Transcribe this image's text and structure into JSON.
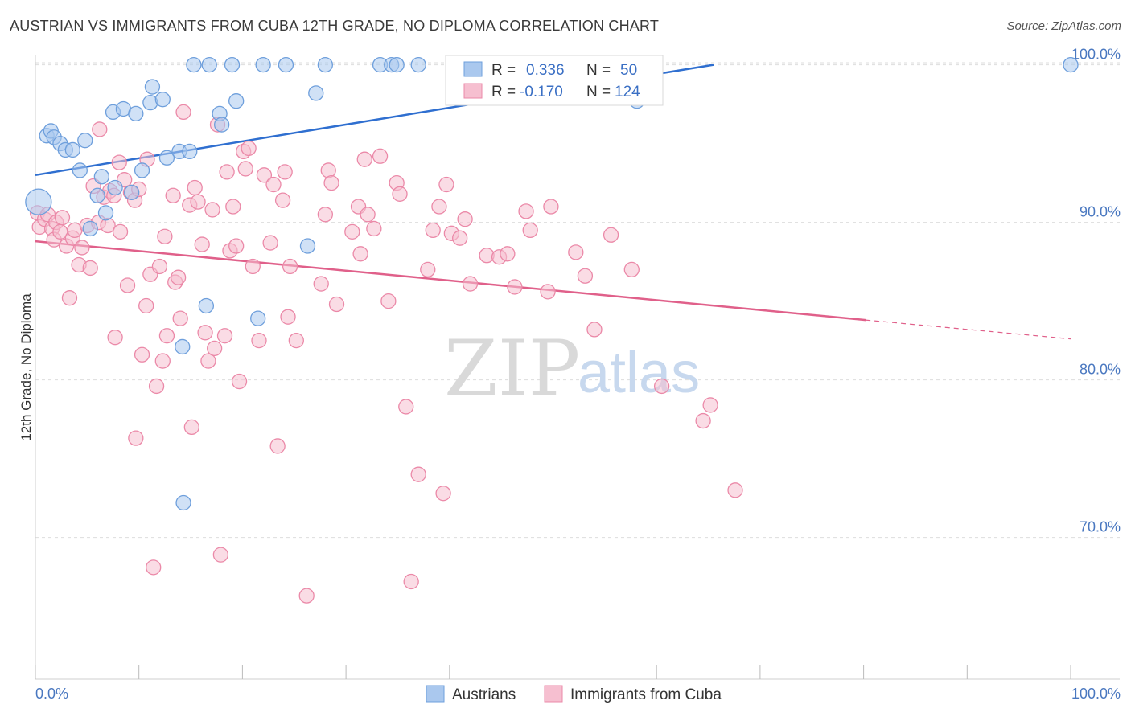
{
  "title": "AUSTRIAN VS IMMIGRANTS FROM CUBA 12TH GRADE, NO DIPLOMA CORRELATION CHART",
  "source": "Source: ZipAtlas.com",
  "watermark": {
    "zip": "ZIP",
    "atlas": "atlas"
  },
  "colors": {
    "blue_fill": "#aac8ee",
    "blue_stroke": "#6e9fdc",
    "blue_line": "#2f6fd0",
    "pink_fill": "#f6bfd0",
    "pink_stroke": "#eb89a8",
    "pink_line": "#e0608a",
    "axis_text": "#4a78c0",
    "grid": "#dddddd"
  },
  "legend_box": {
    "rows": [
      {
        "r_label": "R =",
        "r_value": "0.336",
        "n_label": "N =",
        "n_value": "50"
      },
      {
        "r_label": "R =",
        "r_value": "-0.170",
        "n_label": "N =",
        "n_value": "124"
      }
    ]
  },
  "bottom_legend": [
    "Austrians",
    "Immigrants from Cuba"
  ],
  "chart_data": {
    "type": "scatter",
    "title": "AUSTRIAN VS IMMIGRANTS FROM CUBA 12TH GRADE, NO DIPLOMA CORRELATION CHART",
    "xlabel": "",
    "ylabel": "12th Grade, No Diploma",
    "xlim": [
      0,
      100
    ],
    "ylim": [
      61,
      101
    ],
    "x_tick_labels": [
      "0.0%",
      "100.0%"
    ],
    "y_ticks": [
      70,
      80,
      90,
      100
    ],
    "y_tick_labels": [
      "70.0%",
      "80.0%",
      "90.0%",
      "100.0%"
    ],
    "grid": true,
    "legend_position": "top-center",
    "series": [
      {
        "name": "Austrians",
        "color": "#aac8ee",
        "trend": {
          "x": [
            0,
            65.5
          ],
          "y": [
            93.0,
            100.0
          ]
        },
        "points": [
          [
            0.3,
            91.3
          ],
          [
            1.1,
            95.5
          ],
          [
            1.5,
            95.8
          ],
          [
            1.8,
            95.4
          ],
          [
            2.4,
            95.0
          ],
          [
            2.9,
            94.6
          ],
          [
            3.6,
            94.6
          ],
          [
            4.3,
            93.3
          ],
          [
            4.8,
            95.2
          ],
          [
            5.3,
            89.6
          ],
          [
            6.0,
            91.7
          ],
          [
            6.4,
            92.9
          ],
          [
            6.8,
            90.6
          ],
          [
            7.5,
            97.0
          ],
          [
            7.7,
            92.2
          ],
          [
            8.5,
            97.2
          ],
          [
            9.3,
            91.9
          ],
          [
            9.7,
            96.9
          ],
          [
            10.3,
            93.3
          ],
          [
            11.1,
            97.6
          ],
          [
            11.3,
            98.6
          ],
          [
            12.3,
            97.8
          ],
          [
            12.7,
            94.1
          ],
          [
            13.9,
            94.5
          ],
          [
            14.2,
            82.1
          ],
          [
            14.3,
            72.2
          ],
          [
            14.9,
            94.5
          ],
          [
            15.3,
            100.0
          ],
          [
            16.5,
            84.7
          ],
          [
            16.8,
            100.0
          ],
          [
            17.8,
            96.9
          ],
          [
            18.0,
            96.2
          ],
          [
            19.0,
            100.0
          ],
          [
            19.4,
            97.7
          ],
          [
            21.5,
            83.9
          ],
          [
            22.0,
            100.0
          ],
          [
            24.2,
            100.0
          ],
          [
            26.3,
            88.5
          ],
          [
            27.1,
            98.2
          ],
          [
            28.0,
            100.0
          ],
          [
            33.3,
            100.0
          ],
          [
            34.4,
            100.0
          ],
          [
            34.9,
            100.0
          ],
          [
            37.0,
            100.0
          ],
          [
            41.3,
            100.0
          ],
          [
            51.3,
            100.0
          ],
          [
            53.2,
            100.0
          ],
          [
            57.0,
            100.0
          ],
          [
            58.1,
            97.7
          ],
          [
            100.0,
            100.0
          ]
        ]
      },
      {
        "name": "Immigrants from Cuba",
        "color": "#f6bfd0",
        "trend": {
          "x": [
            0,
            80.2
          ],
          "y": [
            88.8,
            83.8
          ]
        },
        "trend_dashed": {
          "x": [
            80.2,
            100
          ],
          "y": [
            83.8,
            82.6
          ]
        },
        "points": [
          [
            0.2,
            90.6
          ],
          [
            0.4,
            89.7
          ],
          [
            0.9,
            90.2
          ],
          [
            1.2,
            90.5
          ],
          [
            1.6,
            89.6
          ],
          [
            1.8,
            88.9
          ],
          [
            2.0,
            90.0
          ],
          [
            2.4,
            89.4
          ],
          [
            2.6,
            90.3
          ],
          [
            3.0,
            88.5
          ],
          [
            3.3,
            85.2
          ],
          [
            3.6,
            89.0
          ],
          [
            3.8,
            89.5
          ],
          [
            4.2,
            87.3
          ],
          [
            4.5,
            88.4
          ],
          [
            5.0,
            89.8
          ],
          [
            5.3,
            87.1
          ],
          [
            5.6,
            92.3
          ],
          [
            6.1,
            90.0
          ],
          [
            6.2,
            95.9
          ],
          [
            6.6,
            91.6
          ],
          [
            7.0,
            89.8
          ],
          [
            7.2,
            92.0
          ],
          [
            7.6,
            91.7
          ],
          [
            7.7,
            82.7
          ],
          [
            8.1,
            93.8
          ],
          [
            8.2,
            89.4
          ],
          [
            8.6,
            92.7
          ],
          [
            8.9,
            86.0
          ],
          [
            9.2,
            91.9
          ],
          [
            9.6,
            91.4
          ],
          [
            9.7,
            76.3
          ],
          [
            10.0,
            92.1
          ],
          [
            10.3,
            81.6
          ],
          [
            10.7,
            84.7
          ],
          [
            10.8,
            94.0
          ],
          [
            11.1,
            86.7
          ],
          [
            11.4,
            68.1
          ],
          [
            11.7,
            79.6
          ],
          [
            12.0,
            87.2
          ],
          [
            12.3,
            81.2
          ],
          [
            12.5,
            89.1
          ],
          [
            12.7,
            82.8
          ],
          [
            13.3,
            91.7
          ],
          [
            13.5,
            86.2
          ],
          [
            13.8,
            86.5
          ],
          [
            14.0,
            83.9
          ],
          [
            14.3,
            97.0
          ],
          [
            14.9,
            91.1
          ],
          [
            15.1,
            77.0
          ],
          [
            15.4,
            92.2
          ],
          [
            15.7,
            91.3
          ],
          [
            16.1,
            88.6
          ],
          [
            16.4,
            83.0
          ],
          [
            16.7,
            81.2
          ],
          [
            17.1,
            90.8
          ],
          [
            17.3,
            82.0
          ],
          [
            17.6,
            96.2
          ],
          [
            17.9,
            68.9
          ],
          [
            18.3,
            82.8
          ],
          [
            18.5,
            93.2
          ],
          [
            18.8,
            88.2
          ],
          [
            19.1,
            91.0
          ],
          [
            19.4,
            88.5
          ],
          [
            19.7,
            79.9
          ],
          [
            20.1,
            94.5
          ],
          [
            20.3,
            93.4
          ],
          [
            20.6,
            94.7
          ],
          [
            21.0,
            87.2
          ],
          [
            21.6,
            82.5
          ],
          [
            22.1,
            93.0
          ],
          [
            22.7,
            88.7
          ],
          [
            23.0,
            92.4
          ],
          [
            23.4,
            75.8
          ],
          [
            23.9,
            91.4
          ],
          [
            24.1,
            93.2
          ],
          [
            24.4,
            84.0
          ],
          [
            24.6,
            87.2
          ],
          [
            25.2,
            82.5
          ],
          [
            26.2,
            66.3
          ],
          [
            27.6,
            86.1
          ],
          [
            28.0,
            90.5
          ],
          [
            28.3,
            93.3
          ],
          [
            28.6,
            92.5
          ],
          [
            29.1,
            84.8
          ],
          [
            30.6,
            89.4
          ],
          [
            31.2,
            91.0
          ],
          [
            31.4,
            88.0
          ],
          [
            31.8,
            94.0
          ],
          [
            32.1,
            90.5
          ],
          [
            32.7,
            89.6
          ],
          [
            33.3,
            94.2
          ],
          [
            34.1,
            85.0
          ],
          [
            34.9,
            92.5
          ],
          [
            35.2,
            91.8
          ],
          [
            35.8,
            78.3
          ],
          [
            36.3,
            67.2
          ],
          [
            37.0,
            74.0
          ],
          [
            37.9,
            87.0
          ],
          [
            38.4,
            89.5
          ],
          [
            39.0,
            91.0
          ],
          [
            39.4,
            72.8
          ],
          [
            39.7,
            92.4
          ],
          [
            40.2,
            89.3
          ],
          [
            41.0,
            89.0
          ],
          [
            41.5,
            90.2
          ],
          [
            42.0,
            86.1
          ],
          [
            43.6,
            87.9
          ],
          [
            44.8,
            87.8
          ],
          [
            45.6,
            88.0
          ],
          [
            46.3,
            85.9
          ],
          [
            47.4,
            90.7
          ],
          [
            47.8,
            89.5
          ],
          [
            49.5,
            85.6
          ],
          [
            49.8,
            91.0
          ],
          [
            52.2,
            88.1
          ],
          [
            53.1,
            86.6
          ],
          [
            54.0,
            83.2
          ],
          [
            55.6,
            89.2
          ],
          [
            57.6,
            87.0
          ],
          [
            60.5,
            79.6
          ],
          [
            64.5,
            77.4
          ],
          [
            65.2,
            78.4
          ],
          [
            67.6,
            73.0
          ]
        ]
      }
    ]
  }
}
